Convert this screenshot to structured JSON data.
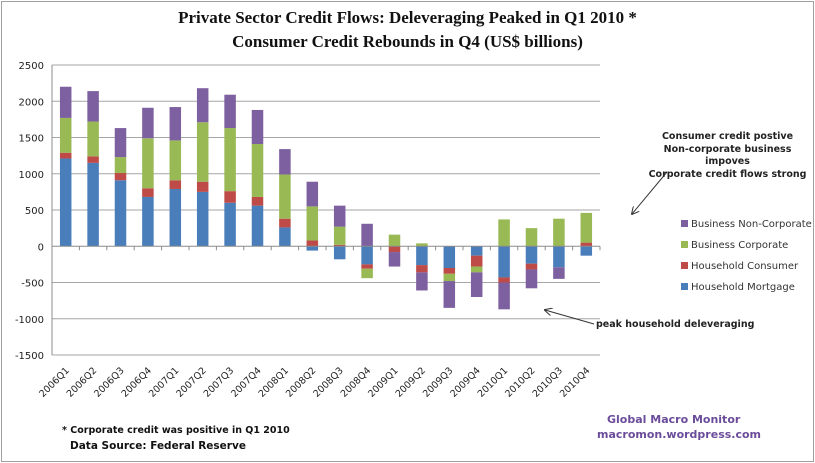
{
  "chart_data": {
    "type": "bar",
    "stacked": true,
    "title": "Private Sector Credit Flows:  Deleveraging Peaked in Q1 2010 *",
    "subtitle": "Consumer Credit Rebounds in Q4  (US$ billions)",
    "xlabel": "",
    "ylabel": "",
    "ylim": [
      -1500,
      2500
    ],
    "yticks": [
      2500,
      2000,
      1500,
      1000,
      500,
      0,
      -500,
      -1000,
      -1500
    ],
    "grid": true,
    "legend_position": "right",
    "categories": [
      "2006Q1",
      "2006Q2",
      "2006Q3",
      "2006Q4",
      "2007Q1",
      "2007Q2",
      "2007Q3",
      "2007Q4",
      "2008Q1",
      "2008Q2",
      "2008Q3",
      "2008Q4",
      "2009Q1",
      "2009Q2",
      "2009Q3",
      "2009Q4",
      "2010Q1",
      "2010Q2",
      "2010Q3",
      "2010Q4"
    ],
    "series": [
      {
        "name": "Household Mortgage",
        "color": "#4a7ebb",
        "values": [
          1210,
          1150,
          910,
          680,
          790,
          750,
          600,
          560,
          260,
          -60,
          -180,
          -250,
          0,
          -260,
          -300,
          -130,
          -430,
          -240,
          -290,
          -130
        ]
      },
      {
        "name": "Household Consumer",
        "color": "#be4b48",
        "values": [
          80,
          90,
          100,
          120,
          120,
          140,
          160,
          120,
          120,
          80,
          20,
          -60,
          -80,
          -100,
          -80,
          -150,
          -70,
          -80,
          0,
          50
        ]
      },
      {
        "name": "Business Corporate",
        "color": "#98b954",
        "values": [
          480,
          480,
          220,
          690,
          550,
          820,
          870,
          730,
          610,
          470,
          250,
          -130,
          160,
          40,
          -100,
          -80,
          370,
          250,
          380,
          410
        ]
      },
      {
        "name": "Business Non-Corporate",
        "color": "#7d60a0",
        "values": [
          430,
          420,
          400,
          420,
          460,
          470,
          460,
          470,
          350,
          340,
          290,
          310,
          -200,
          -250,
          -370,
          -340,
          -370,
          -260,
          -160,
          0
        ]
      }
    ],
    "legend_order": [
      "Business Non-Corporate",
      "Business Corporate",
      "Household Consumer",
      "Household Mortgage"
    ],
    "annotations": [
      {
        "lines": [
          "Consumer credit postive",
          "Non-corporate business impoves",
          "Corporate  credit flows strong"
        ],
        "target": "2010Q4"
      },
      {
        "lines": [
          "peak household  deleveraging"
        ],
        "target": "2010Q1"
      }
    ]
  },
  "footnote": "* Corporate credit was positive in  Q1 2010",
  "data_source": "Data Source:  Federal Reserve",
  "brand": {
    "name": "Global Macro Monitor",
    "url": "macromon.wordpress.com"
  }
}
